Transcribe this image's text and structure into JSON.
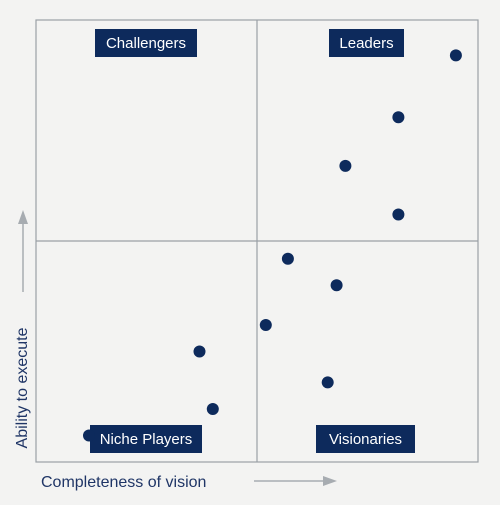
{
  "colors": {
    "background": "#f3f3f2",
    "dot": "#0d2a5c",
    "label_box": "#0d2a5c",
    "label_text": "#ffffff",
    "grid": "#9aa0a6",
    "arrow": "#a7acb1",
    "axis_text": "#1f3566"
  },
  "chart_data": {
    "type": "scatter",
    "title": "",
    "xlabel": "Completeness of vision",
    "ylabel": "Ability to execute",
    "xlim": [
      0,
      100
    ],
    "ylim": [
      0,
      100
    ],
    "grid": false,
    "quadrants": {
      "top_left": "Challengers",
      "top_right": "Leaders",
      "bottom_left": "Niche Players",
      "bottom_right": "Visionaries"
    },
    "points": [
      {
        "x": 95,
        "y": 92
      },
      {
        "x": 82,
        "y": 78
      },
      {
        "x": 70,
        "y": 67
      },
      {
        "x": 82,
        "y": 56
      },
      {
        "x": 57,
        "y": 46
      },
      {
        "x": 68,
        "y": 40
      },
      {
        "x": 52,
        "y": 31
      },
      {
        "x": 37,
        "y": 25
      },
      {
        "x": 66,
        "y": 18
      },
      {
        "x": 40,
        "y": 12
      },
      {
        "x": 12,
        "y": 6
      }
    ]
  }
}
